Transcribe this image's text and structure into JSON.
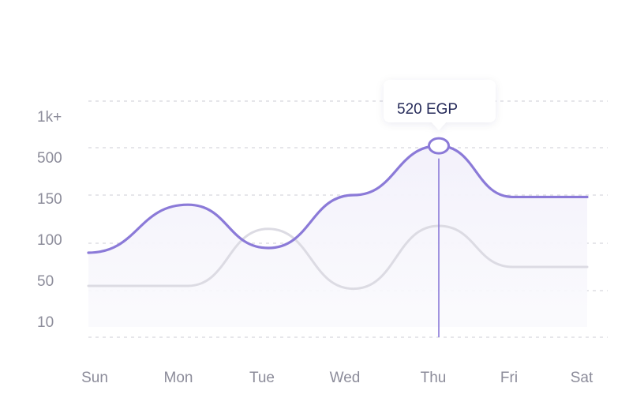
{
  "chart_data": {
    "type": "area",
    "categories": [
      "Sun",
      "Mon",
      "Tue",
      "Wed",
      "Thu",
      "Fri",
      "Sat"
    ],
    "y_tick_labels": [
      "1k+",
      "500",
      "150",
      "100",
      "50",
      "10"
    ],
    "scale_note": "non-linear categorical y-axis; index 0 = 10 (bottom) ... index 5 = 1k+ (top)",
    "series": [
      {
        "values": [
          90,
          140,
          95,
          150,
          520,
          148,
          148
        ],
        "color": "#8b7ad8",
        "fill": "#f6f4fc"
      },
      {
        "values": [
          55,
          55,
          115,
          52,
          118,
          75,
          75
        ],
        "color": "#dcdbe3"
      }
    ],
    "tooltip": {
      "category": "Thu",
      "label": "520 EGP"
    },
    "grid": "horizontal-dashed",
    "colors": {
      "grid": "#d7d7de",
      "tick": "#8c8c9a",
      "tooltip_text": "#262b5a",
      "tooltip_bg": "#ffffff",
      "marker": "#8b7ad8"
    }
  }
}
